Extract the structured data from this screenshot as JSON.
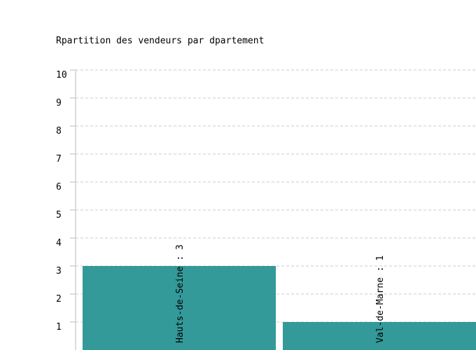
{
  "chart_data": {
    "type": "bar",
    "title": "Rpartition des vendeurs par dpartement",
    "values": [
      3,
      1
    ],
    "value_labels": [
      "Hauts-de-Seine : 3",
      "Val-de-Marne : 1"
    ],
    "color": "#339999",
    "ylim": [
      0,
      10
    ],
    "yticks": [
      1,
      2,
      3,
      4,
      5,
      6,
      7,
      8,
      9,
      10
    ],
    "grid": true
  }
}
